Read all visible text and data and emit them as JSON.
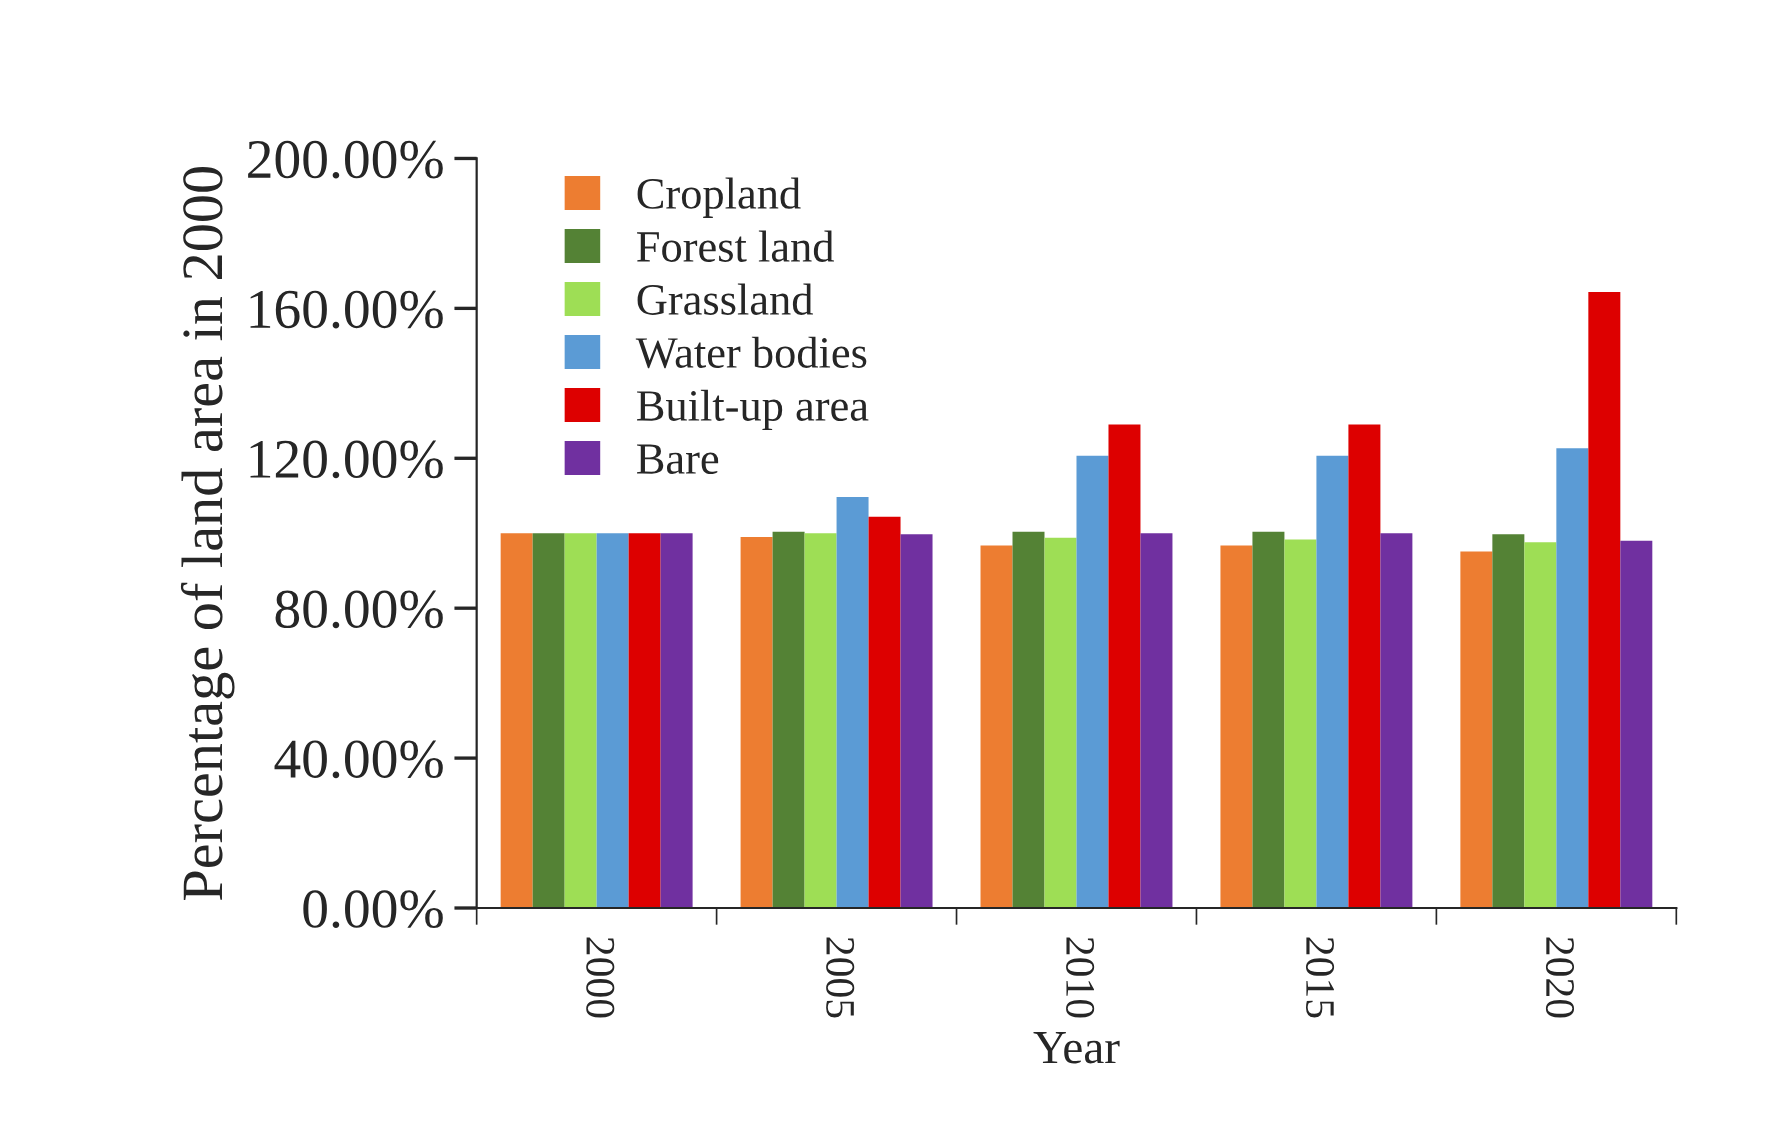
{
  "chart_data": {
    "type": "bar",
    "xlabel": "Year",
    "ylabel": "Percentage of land area in 2000",
    "categories": [
      "2000",
      "2005",
      "2010",
      "2015",
      "2020"
    ],
    "series": [
      {
        "name": "Cropland",
        "color": "#ed7d31",
        "values": [
          100,
          99.0,
          96.7,
          96.7,
          95.1
        ]
      },
      {
        "name": "Forest land",
        "color": "#548235",
        "values": [
          100,
          100.4,
          100.4,
          100.4,
          99.7
        ]
      },
      {
        "name": "Grassland",
        "color": "#9ede55",
        "values": [
          100,
          100,
          98.8,
          98.3,
          97.6
        ]
      },
      {
        "name": "Water bodies",
        "color": "#5b9bd5",
        "values": [
          100,
          109.7,
          120.7,
          120.7,
          122.7
        ]
      },
      {
        "name": "Built-up area",
        "color": "#dd0000",
        "values": [
          100,
          104.4,
          129,
          129,
          164.4
        ]
      },
      {
        "name": "Bare",
        "color": "#7030a0",
        "values": [
          100,
          99.7,
          100,
          100,
          98
        ]
      }
    ],
    "ylim": [
      0,
      200
    ],
    "yticks": [
      {
        "value": 0,
        "label": "0.00%"
      },
      {
        "value": 40,
        "label": "40.00%"
      },
      {
        "value": 80,
        "label": "80.00%"
      },
      {
        "value": 120,
        "label": "120.00%"
      },
      {
        "value": 160,
        "label": "160.00%"
      },
      {
        "value": 200,
        "label": "200.00%"
      }
    ],
    "grid": false,
    "legend": "top left"
  }
}
